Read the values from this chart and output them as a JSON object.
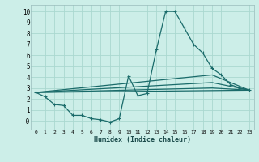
{
  "xlabel": "Humidex (Indice chaleur)",
  "bg_color": "#cceee8",
  "grid_color": "#aad8d0",
  "line_color": "#1a6b6a",
  "xlim": [
    -0.5,
    23.5
  ],
  "ylim": [
    -0.8,
    10.6
  ],
  "xticks": [
    0,
    1,
    2,
    3,
    4,
    5,
    6,
    7,
    8,
    9,
    10,
    11,
    12,
    13,
    14,
    15,
    16,
    17,
    18,
    19,
    20,
    21,
    22,
    23
  ],
  "yticks": [
    0,
    1,
    2,
    3,
    4,
    5,
    6,
    7,
    8,
    9,
    10
  ],
  "ytick_labels": [
    "-0",
    "1",
    "2",
    "3",
    "4",
    "5",
    "6",
    "7",
    "8",
    "9",
    "10"
  ],
  "line1_x": [
    0,
    1,
    2,
    3,
    4,
    5,
    6,
    7,
    8,
    9,
    10,
    11,
    12,
    13,
    14,
    15,
    16,
    17,
    18,
    19,
    20,
    21,
    22,
    23
  ],
  "line1_y": [
    2.6,
    2.2,
    1.5,
    1.4,
    0.5,
    0.5,
    0.2,
    0.1,
    -0.1,
    0.2,
    4.1,
    2.3,
    2.5,
    6.5,
    10.0,
    10.0,
    8.5,
    7.0,
    6.2,
    4.8,
    4.2,
    3.3,
    3.0,
    2.8
  ],
  "line2_x": [
    0,
    23
  ],
  "line2_y": [
    2.6,
    2.8
  ],
  "line3_x": [
    0,
    19,
    23
  ],
  "line3_y": [
    2.6,
    4.2,
    2.8
  ],
  "line4_x": [
    0,
    19,
    23
  ],
  "line4_y": [
    2.6,
    3.5,
    2.8
  ],
  "line5_x": [
    0,
    19,
    23
  ],
  "line5_y": [
    2.6,
    3.0,
    2.8
  ]
}
